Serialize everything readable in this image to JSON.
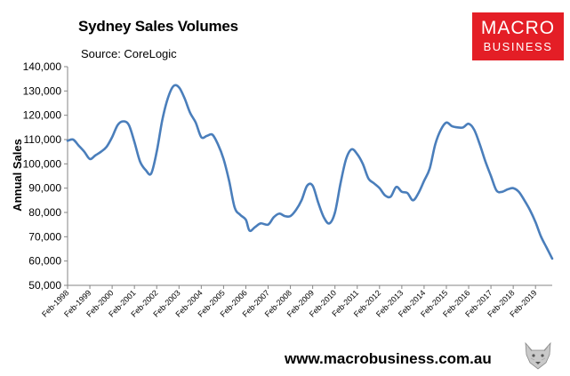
{
  "header": {
    "title": "Sydney Sales Volumes",
    "source": "Source: CoreLogic"
  },
  "logo": {
    "line1": "MACRO",
    "line2": "BUSINESS",
    "color": "#e41e26"
  },
  "footer": {
    "website": "www.macrobusiness.com.au",
    "mascot_icon": "wolf-head-icon"
  },
  "chart_data": {
    "type": "line",
    "title": "Sydney Sales Volumes",
    "subtitle": "Source: CoreLogic",
    "xlabel": "",
    "ylabel": "Annual Sales",
    "ylim": [
      50000,
      140000
    ],
    "yticks": [
      "50,000",
      "60,000",
      "70,000",
      "80,000",
      "90,000",
      "100,000",
      "110,000",
      "120,000",
      "130,000",
      "140,000"
    ],
    "xticks": [
      "Feb-1998",
      "Feb-1999",
      "Feb-2000",
      "Feb-2001",
      "Feb-2002",
      "Feb-2003",
      "Feb-2004",
      "Feb-2005",
      "Feb-2006",
      "Feb-2007",
      "Feb-2008",
      "Feb-2009",
      "Feb-2010",
      "Feb-2011",
      "Feb-2012",
      "Feb-2013",
      "Feb-2014",
      "Feb-2015",
      "Feb-2016",
      "Feb-2017",
      "Feb-2018",
      "Feb-2019"
    ],
    "grid": false,
    "legend": "none",
    "color": "#4a7ebb",
    "series": [
      {
        "points": [
          [
            "1998-02",
            109500
          ],
          [
            "1998-05",
            110000
          ],
          [
            "1998-08",
            107500
          ],
          [
            "1998-11",
            105000
          ],
          [
            "1999-02",
            102000
          ],
          [
            "1999-05",
            103500
          ],
          [
            "1999-08",
            105000
          ],
          [
            "1999-11",
            107000
          ],
          [
            "2000-02",
            111000
          ],
          [
            "2000-05",
            116000
          ],
          [
            "2000-08",
            117500
          ],
          [
            "2000-11",
            116000
          ],
          [
            "2001-02",
            109000
          ],
          [
            "2001-05",
            101000
          ],
          [
            "2001-08",
            97500
          ],
          [
            "2001-11",
            96000
          ],
          [
            "2002-02",
            105000
          ],
          [
            "2002-05",
            118000
          ],
          [
            "2002-08",
            127000
          ],
          [
            "2002-11",
            132000
          ],
          [
            "2003-02",
            131500
          ],
          [
            "2003-05",
            127000
          ],
          [
            "2003-08",
            121000
          ],
          [
            "2003-11",
            117000
          ],
          [
            "2004-02",
            111000
          ],
          [
            "2004-05",
            111500
          ],
          [
            "2004-08",
            112000
          ],
          [
            "2004-11",
            108000
          ],
          [
            "2005-02",
            102000
          ],
          [
            "2005-05",
            93000
          ],
          [
            "2005-08",
            82000
          ],
          [
            "2005-11",
            79000
          ],
          [
            "2006-02",
            77000
          ],
          [
            "2006-04",
            72500
          ],
          [
            "2006-07",
            74000
          ],
          [
            "2006-10",
            75500
          ],
          [
            "2007-02",
            75000
          ],
          [
            "2007-05",
            78000
          ],
          [
            "2007-08",
            79500
          ],
          [
            "2007-11",
            78500
          ],
          [
            "2008-02",
            78500
          ],
          [
            "2008-05",
            81000
          ],
          [
            "2008-08",
            85000
          ],
          [
            "2008-11",
            91000
          ],
          [
            "2009-02",
            91000
          ],
          [
            "2009-05",
            84000
          ],
          [
            "2009-08",
            78000
          ],
          [
            "2009-11",
            75500
          ],
          [
            "2010-02",
            80000
          ],
          [
            "2010-05",
            92000
          ],
          [
            "2010-08",
            102000
          ],
          [
            "2010-11",
            106000
          ],
          [
            "2011-02",
            104000
          ],
          [
            "2011-05",
            100000
          ],
          [
            "2011-08",
            94000
          ],
          [
            "2011-11",
            92000
          ],
          [
            "2012-02",
            90000
          ],
          [
            "2012-05",
            87000
          ],
          [
            "2012-08",
            86500
          ],
          [
            "2012-11",
            90500
          ],
          [
            "2013-02",
            88500
          ],
          [
            "2013-05",
            88000
          ],
          [
            "2013-08",
            85000
          ],
          [
            "2013-11",
            88000
          ],
          [
            "2014-02",
            93000
          ],
          [
            "2014-05",
            98000
          ],
          [
            "2014-08",
            108000
          ],
          [
            "2014-11",
            114000
          ],
          [
            "2015-02",
            117000
          ],
          [
            "2015-05",
            115500
          ],
          [
            "2015-08",
            115000
          ],
          [
            "2015-11",
            115000
          ],
          [
            "2016-02",
            116500
          ],
          [
            "2016-05",
            114000
          ],
          [
            "2016-08",
            108000
          ],
          [
            "2016-11",
            101000
          ],
          [
            "2017-02",
            95000
          ],
          [
            "2017-05",
            89000
          ],
          [
            "2017-08",
            88500
          ],
          [
            "2017-11",
            89500
          ],
          [
            "2018-02",
            90000
          ],
          [
            "2018-05",
            88500
          ],
          [
            "2018-08",
            85000
          ],
          [
            "2018-11",
            81000
          ],
          [
            "2019-02",
            76000
          ],
          [
            "2019-05",
            70000
          ],
          [
            "2019-08",
            65500
          ],
          [
            "2019-11",
            61000
          ]
        ]
      }
    ]
  }
}
